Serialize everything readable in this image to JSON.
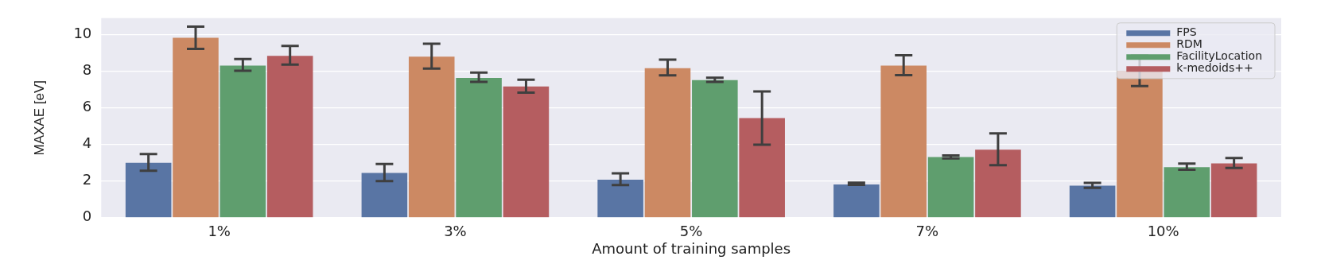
{
  "chart_data": {
    "type": "bar",
    "xlabel": "Amount of training samples",
    "ylabel": "MAXAE [eV]",
    "categories": [
      "1%",
      "3%",
      "5%",
      "7%",
      "10%"
    ],
    "series": [
      {
        "name": "FPS",
        "color": "#5975a4",
        "values": [
          3.0,
          2.44,
          2.08,
          1.82,
          1.75
        ],
        "errors": [
          [
            2.56,
            3.48
          ],
          [
            2.0,
            2.93
          ],
          [
            1.78,
            2.42
          ],
          [
            1.79,
            1.91
          ],
          [
            1.63,
            1.9
          ]
        ]
      },
      {
        "name": "RDM",
        "color": "#cc8963",
        "values": [
          9.83,
          8.8,
          8.17,
          8.31,
          8.03
        ],
        "errors": [
          [
            9.22,
            10.44
          ],
          [
            8.14,
            9.5
          ],
          [
            7.78,
            8.63
          ],
          [
            7.79,
            8.87
          ],
          [
            7.19,
            8.87
          ]
        ]
      },
      {
        "name": "FacilityLocation",
        "color": "#5f9e6e",
        "values": [
          8.31,
          7.63,
          7.52,
          3.31,
          2.76
        ],
        "errors": [
          [
            8.02,
            8.67
          ],
          [
            7.42,
            7.93
          ],
          [
            7.42,
            7.65
          ],
          [
            3.24,
            3.4
          ],
          [
            2.62,
            2.96
          ]
        ]
      },
      {
        "name": "k-medoids++",
        "color": "#b55d60",
        "values": [
          8.84,
          7.17,
          5.44,
          3.72,
          2.97
        ],
        "errors": [
          [
            8.36,
            9.38
          ],
          [
            6.83,
            7.54
          ],
          [
            3.99,
            6.9
          ],
          [
            2.87,
            4.6
          ],
          [
            2.72,
            3.26
          ]
        ]
      }
    ],
    "ylim": [
      0,
      10.9
    ],
    "yticks": [
      0,
      2,
      4,
      6,
      8,
      10
    ],
    "grid": "y",
    "legend": "top right"
  }
}
